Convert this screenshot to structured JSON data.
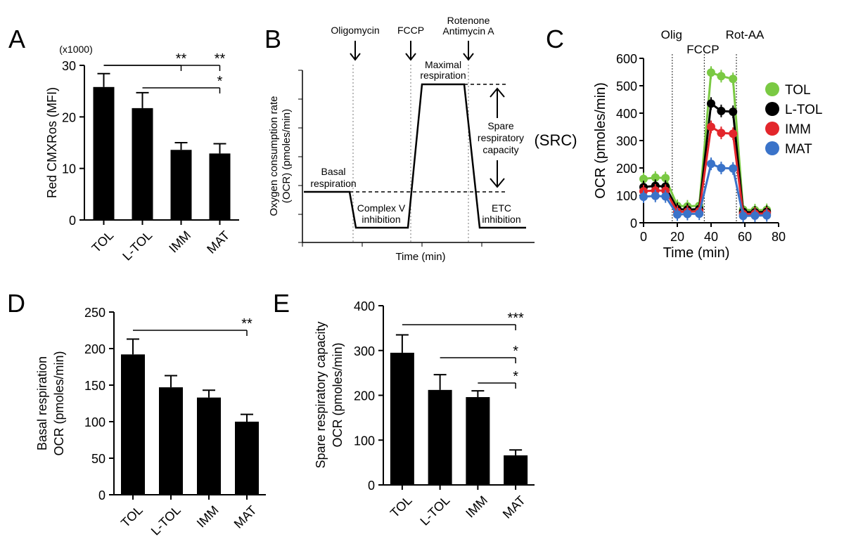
{
  "chart_data": [
    {
      "panel": "A",
      "type": "bar",
      "ylabel": "Red CMXRos (MFI)",
      "scale_note": "(x1000)",
      "categories": [
        "TOL",
        "L-TOL",
        "IMM",
        "MAT"
      ],
      "values": [
        25.8,
        21.7,
        13.6,
        12.9
      ],
      "errors": [
        2.6,
        3.0,
        1.4,
        1.9
      ],
      "ylim": [
        0,
        30
      ],
      "yticks": [
        "0",
        "10",
        "20",
        "30"
      ],
      "significance": [
        {
          "from": 0,
          "to": 2,
          "label": "**"
        },
        {
          "from": 0,
          "to": 3,
          "label": "**"
        },
        {
          "from": 1,
          "to": 3,
          "label": "*"
        }
      ]
    },
    {
      "panel": "B",
      "type": "line",
      "xlabel": "Time (min)",
      "ylabel": "Oxygen consumption rate (OCR) (pmoles/min)",
      "injections": [
        "Oligomycin",
        "FCCP",
        "Rotenone Antimycin A"
      ],
      "phases": [
        "Basal respiration",
        "Complex V inhibition",
        "Maximal respiration",
        "ETC inhibition"
      ],
      "annotations": [
        "Spare respiratory capacity",
        "(SRC)"
      ]
    },
    {
      "panel": "C",
      "type": "line",
      "xlabel": "Time (min)",
      "ylabel": "OCR (pmoles/min)",
      "xlim": [
        0,
        80
      ],
      "ylim": [
        0,
        600
      ],
      "xticks": [
        "0",
        "20",
        "40",
        "60",
        "80"
      ],
      "yticks": [
        "0",
        "100",
        "200",
        "300",
        "400",
        "500",
        "600"
      ],
      "injections": [
        {
          "label": "Olig",
          "x": 17
        },
        {
          "label": "FCCP",
          "x": 36
        },
        {
          "label": "Rot-AA",
          "x": 55
        }
      ],
      "x": [
        0,
        7,
        13,
        20,
        26,
        33,
        40,
        46,
        53,
        59,
        66,
        73
      ],
      "series": [
        {
          "name": "TOL",
          "color": "#7ac943",
          "values": [
            160,
            165,
            163,
            62,
            60,
            62,
            548,
            535,
            525,
            48,
            46,
            47
          ]
        },
        {
          "name": "L-TOL",
          "color": "#000000",
          "values": [
            130,
            135,
            132,
            50,
            48,
            50,
            435,
            408,
            405,
            40,
            38,
            40
          ]
        },
        {
          "name": "IMM",
          "color": "#e3262b",
          "values": [
            115,
            118,
            117,
            40,
            40,
            42,
            350,
            328,
            325,
            32,
            33,
            34
          ]
        },
        {
          "name": "MAT",
          "color": "#3a73c9",
          "values": [
            95,
            98,
            96,
            30,
            32,
            33,
            215,
            200,
            198,
            25,
            26,
            27
          ]
        }
      ]
    },
    {
      "panel": "D",
      "type": "bar",
      "ylabel": [
        "Basal respiration",
        "OCR (pmoles/min)"
      ],
      "categories": [
        "TOL",
        "L-TOL",
        "IMM",
        "MAT"
      ],
      "values": [
        192,
        147,
        133,
        100
      ],
      "errors": [
        21,
        16,
        10,
        10
      ],
      "ylim": [
        0,
        250
      ],
      "yticks": [
        "0",
        "50",
        "100",
        "150",
        "200",
        "250"
      ],
      "significance": [
        {
          "from": 0,
          "to": 3,
          "label": "**"
        }
      ]
    },
    {
      "panel": "E",
      "type": "bar",
      "ylabel": [
        "Spare respiratory capacity",
        "OCR (pmoles/min)"
      ],
      "categories": [
        "TOL",
        "L-TOL",
        "IMM",
        "MAT"
      ],
      "values": [
        295,
        212,
        196,
        66
      ],
      "errors": [
        40,
        34,
        14,
        12
      ],
      "ylim": [
        0,
        400
      ],
      "yticks": [
        "0",
        "100",
        "200",
        "300",
        "400"
      ],
      "significance": [
        {
          "from": 0,
          "to": 3,
          "label": "***"
        },
        {
          "from": 1,
          "to": 3,
          "label": "*"
        },
        {
          "from": 2,
          "to": 3,
          "label": "*"
        }
      ]
    }
  ]
}
